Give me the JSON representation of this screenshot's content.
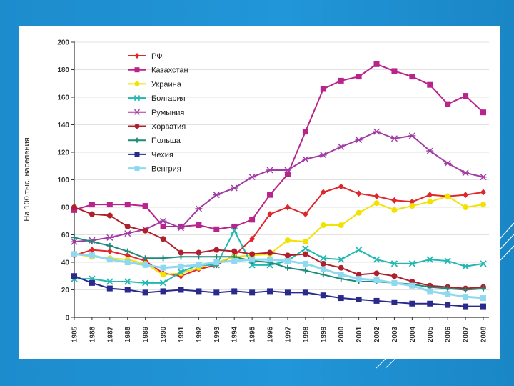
{
  "chart_data": {
    "type": "line",
    "title": "",
    "xlabel": "",
    "ylabel": "На 100 тыс. населения",
    "ylim": [
      0,
      200
    ],
    "yticks": [
      "0",
      "20",
      "40",
      "60",
      "80",
      "100",
      "120",
      "140",
      "160",
      "180",
      "200"
    ],
    "categories": [
      "1985",
      "1986",
      "1987",
      "1988",
      "1989",
      "1990",
      "1991",
      "1992",
      "1993",
      "1994",
      "1995",
      "1996",
      "1997",
      "1998",
      "1999",
      "2000",
      "2001",
      "2002",
      "2003",
      "2004",
      "2005",
      "2006",
      "2007",
      "2008"
    ],
    "legend_position": "top-left",
    "series": [
      {
        "name": "РФ",
        "color": "#e0262b",
        "marker": "diamond",
        "values": [
          45,
          49,
          48,
          45,
          41,
          32,
          30,
          35,
          38,
          45,
          57,
          75,
          80,
          75,
          91,
          95,
          90,
          88,
          85,
          84,
          89,
          88,
          89,
          91
        ]
      },
      {
        "name": "Казахстан",
        "color": "#b8238c",
        "marker": "square",
        "values": [
          78,
          82,
          82,
          82,
          81,
          66,
          66,
          67,
          64,
          66,
          71,
          89,
          104,
          135,
          166,
          172,
          175,
          184,
          179,
          175,
          169,
          155,
          161,
          149
        ]
      },
      {
        "name": "Украина",
        "color": "#f2e200",
        "marker": "circle",
        "values": [
          46,
          44,
          43,
          42,
          39,
          31,
          32,
          36,
          40,
          44,
          45,
          46,
          56,
          55,
          67,
          67,
          76,
          83,
          78,
          81,
          84,
          88,
          80,
          82
        ]
      },
      {
        "name": "Болгария",
        "color": "#20b8b0",
        "marker": "x",
        "values": [
          28,
          28,
          26,
          26,
          25,
          25,
          33,
          38,
          38,
          63,
          38,
          38,
          41,
          50,
          43,
          42,
          49,
          42,
          39,
          39,
          42,
          41,
          37,
          39
        ]
      },
      {
        "name": "Румыния",
        "color": "#a13aa3",
        "marker": "star",
        "values": [
          55,
          56,
          58,
          61,
          64,
          70,
          65,
          79,
          89,
          94,
          102,
          107,
          107,
          115,
          118,
          124,
          129,
          135,
          130,
          132,
          121,
          112,
          105,
          102
        ]
      },
      {
        "name": "Хорватия",
        "color": "#b0202c",
        "marker": "circle",
        "values": [
          80,
          75,
          74,
          66,
          63,
          57,
          47,
          47,
          49,
          48,
          46,
          47,
          45,
          46,
          39,
          36,
          31,
          32,
          30,
          26,
          23,
          22,
          21,
          22
        ]
      },
      {
        "name": "Польша",
        "color": "#1f8a7a",
        "marker": "plus",
        "values": [
          58,
          55,
          52,
          48,
          43,
          43,
          44,
          44,
          44,
          44,
          41,
          40,
          36,
          34,
          31,
          28,
          26,
          26,
          25,
          24,
          22,
          21,
          20,
          21
        ]
      },
      {
        "name": "Чехия",
        "color": "#2a2a8c",
        "marker": "square",
        "values": [
          30,
          25,
          21,
          20,
          18,
          19,
          20,
          19,
          18,
          19,
          18,
          19,
          18,
          18,
          16,
          14,
          13,
          12,
          11,
          10,
          10,
          9,
          8,
          8
        ]
      },
      {
        "name": "Венгрия",
        "color": "#8ed8f0",
        "marker": "square",
        "values": [
          46,
          45,
          42,
          40,
          38,
          36,
          37,
          38,
          40,
          41,
          42,
          42,
          41,
          39,
          35,
          31,
          28,
          27,
          25,
          23,
          19,
          17,
          15,
          14
        ]
      }
    ]
  }
}
